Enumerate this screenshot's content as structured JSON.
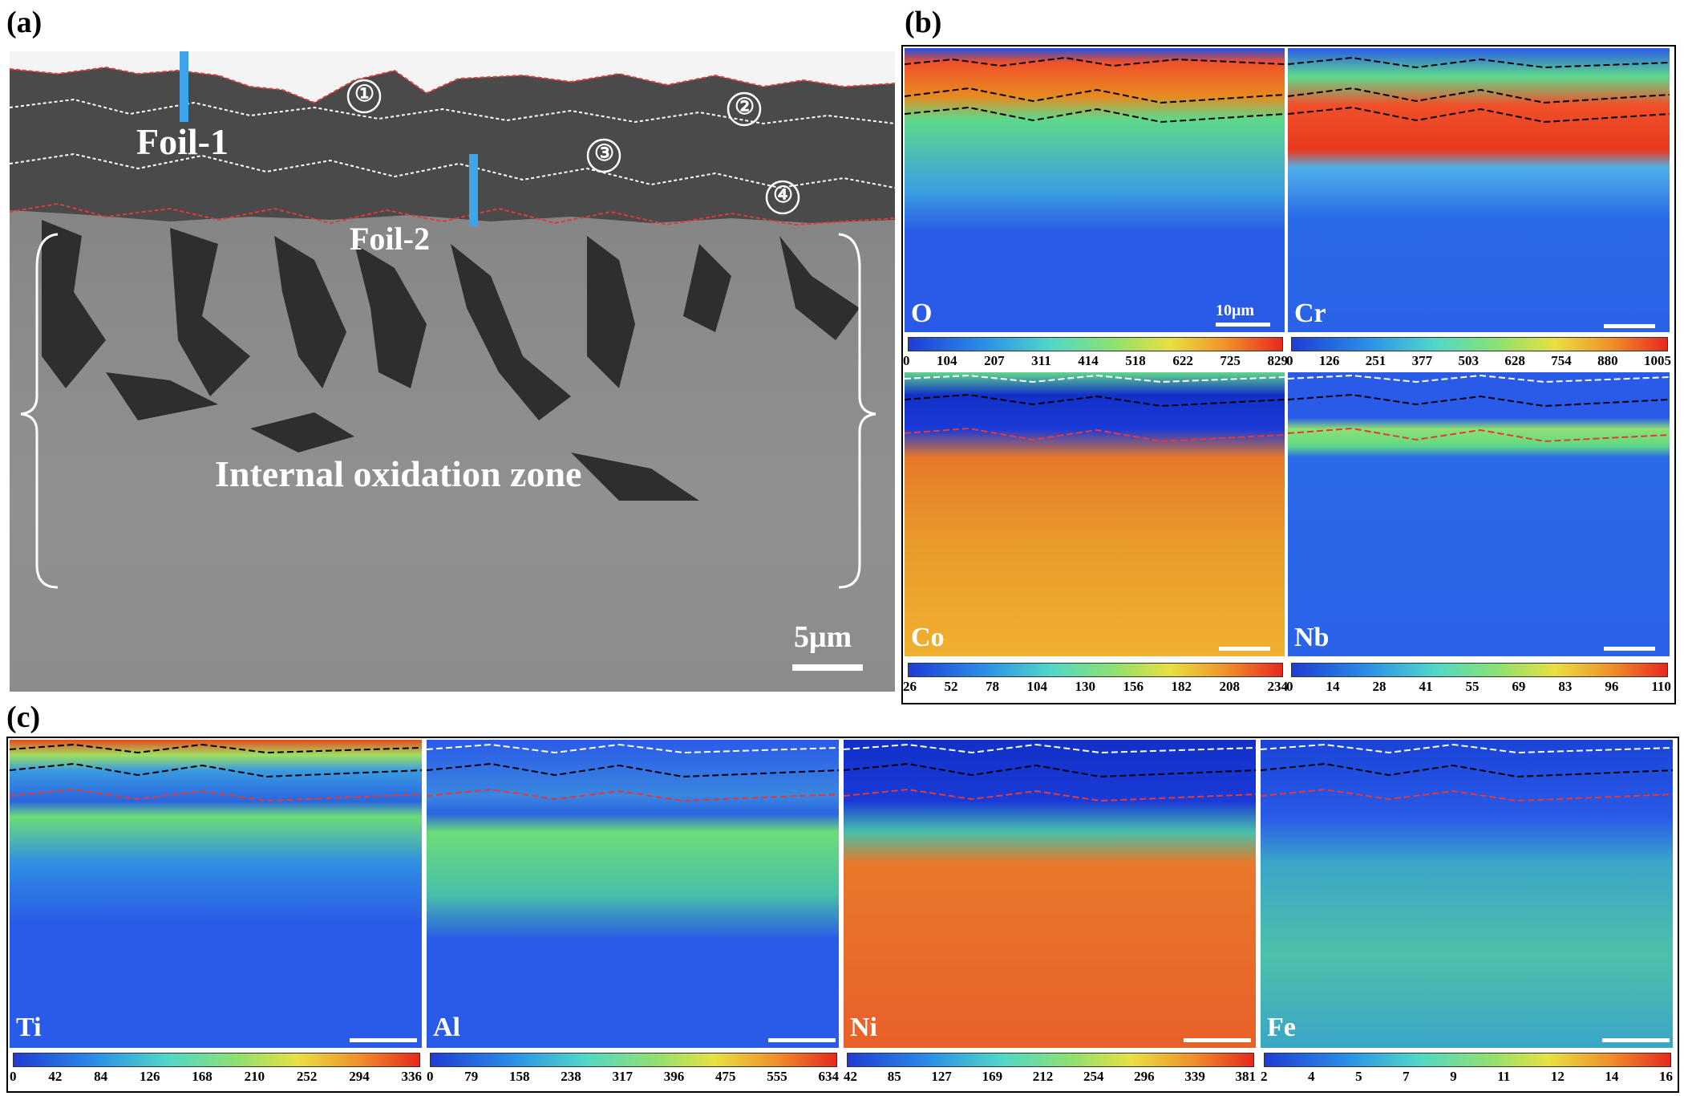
{
  "panel_a": {
    "label": "(a)",
    "foil1": "Foil-1",
    "foil2": "Foil-2",
    "layers": [
      "①",
      "②",
      "③",
      "④"
    ],
    "zone": "Internal oxidation zone",
    "scale": "5μm"
  },
  "panel_b": {
    "label": "(b)",
    "maps": [
      {
        "element": "O",
        "scale": "10μm",
        "ticks": [
          "0",
          "104",
          "207",
          "311",
          "414",
          "518",
          "622",
          "725",
          "829"
        ]
      },
      {
        "element": "Cr",
        "scale": "",
        "ticks": [
          "0",
          "126",
          "251",
          "377",
          "503",
          "628",
          "754",
          "880",
          "1005"
        ]
      },
      {
        "element": "Co",
        "scale": "",
        "ticks": [
          "26",
          "52",
          "78",
          "104",
          "130",
          "156",
          "182",
          "208",
          "234"
        ]
      },
      {
        "element": "Nb",
        "scale": "",
        "ticks": [
          "0",
          "14",
          "28",
          "41",
          "55",
          "69",
          "83",
          "96",
          "110"
        ]
      }
    ]
  },
  "panel_c": {
    "label": "(c)",
    "maps": [
      {
        "element": "Ti",
        "ticks": [
          "0",
          "42",
          "84",
          "126",
          "168",
          "210",
          "252",
          "294",
          "336"
        ]
      },
      {
        "element": "Al",
        "ticks": [
          "0",
          "79",
          "158",
          "238",
          "317",
          "396",
          "475",
          "555",
          "634"
        ]
      },
      {
        "element": "Ni",
        "ticks": [
          "42",
          "85",
          "127",
          "169",
          "212",
          "254",
          "296",
          "339",
          "381"
        ]
      },
      {
        "element": "Fe",
        "ticks": [
          "2",
          "4",
          "5",
          "7",
          "9",
          "11",
          "12",
          "14",
          "16"
        ]
      }
    ]
  },
  "colors": {
    "jet_low": "#1f3cd6",
    "jet_mid": "#4fd88a",
    "jet_high": "#e8281e",
    "interface_red": "#e03a3a",
    "foil_marker": "#3ea6e8"
  }
}
